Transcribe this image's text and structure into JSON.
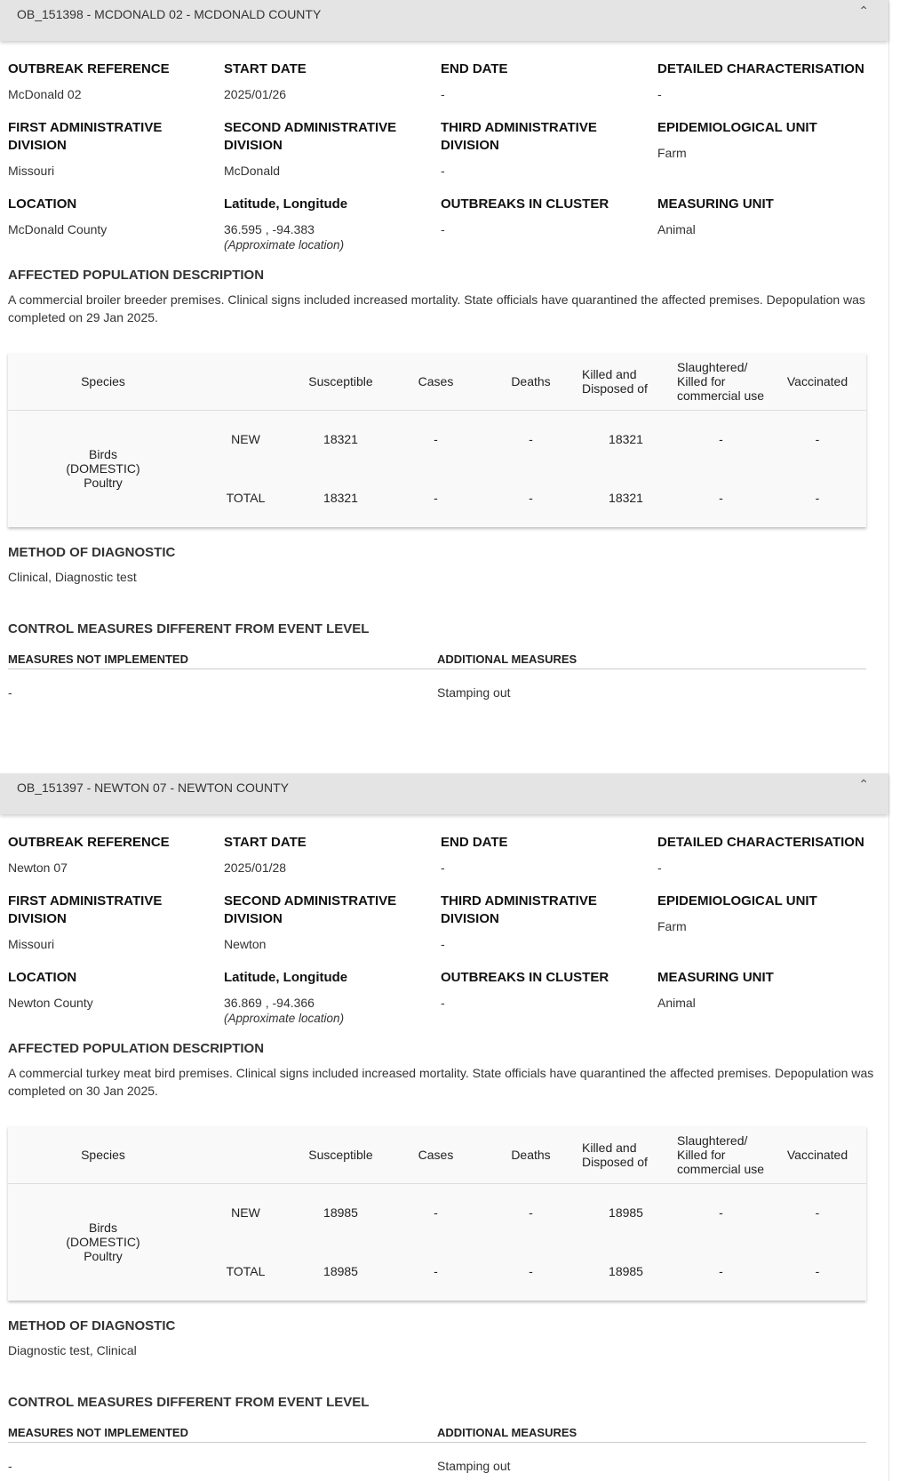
{
  "outbreaks": [
    {
      "title": "OB_151398 - MCDONALD 02 - MCDONALD COUNTY",
      "fields": {
        "outbreak_reference": {
          "label": "OUTBREAK REFERENCE",
          "value": "McDonald 02"
        },
        "start_date": {
          "label": "START DATE",
          "value": "2025/01/26"
        },
        "end_date": {
          "label": "END DATE",
          "value": "-"
        },
        "detailed_characterisation": {
          "label": "DETAILED CHARACTERISATION",
          "value": "-"
        },
        "first_admin": {
          "label": "FIRST ADMINISTRATIVE DIVISION",
          "value": "Missouri"
        },
        "second_admin": {
          "label": "SECOND ADMINISTRATIVE DIVISION",
          "value": "McDonald"
        },
        "third_admin": {
          "label": "THIRD ADMINISTRATIVE DIVISION",
          "value": "-"
        },
        "epi_unit": {
          "label": "EPIDEMIOLOGICAL UNIT",
          "value": "Farm"
        },
        "location": {
          "label": "LOCATION",
          "value": "McDonald County"
        },
        "latlon": {
          "label": "Latitude, Longitude",
          "value": "36.595 , -94.383",
          "note": "(Approximate location)"
        },
        "cluster": {
          "label": "OUTBREAKS IN CLUSTER",
          "value": "-"
        },
        "measuring_unit": {
          "label": "MEASURING UNIT",
          "value": "Animal"
        }
      },
      "affected": {
        "label": "AFFECTED POPULATION DESCRIPTION",
        "text": "A commercial broiler breeder premises. Clinical signs included increased mortality. State officials have quarantined the affected premises. Depopulation was completed on 29 Jan 2025."
      },
      "table": {
        "headers": [
          "Species",
          "",
          "Susceptible",
          "Cases",
          "Deaths",
          "Killed and Disposed of",
          "Slaughtered/ Killed for commercial use",
          "Vaccinated"
        ],
        "species": "Birds (DOMESTIC) Poultry",
        "rows": [
          [
            "NEW",
            "18321",
            "-",
            "-",
            "18321",
            "-",
            "-"
          ],
          [
            "TOTAL",
            "18321",
            "-",
            "-",
            "18321",
            "-",
            "-"
          ]
        ]
      },
      "diagnostic": {
        "label": "METHOD OF DIAGNOSTIC",
        "value": "Clinical, Diagnostic test"
      },
      "control": {
        "label": "CONTROL MEASURES DIFFERENT FROM EVENT LEVEL",
        "not_impl_label": "MEASURES NOT IMPLEMENTED",
        "add_label": "ADDITIONAL MEASURES",
        "not_impl": "-",
        "add": "Stamping out"
      }
    },
    {
      "title": "OB_151397 - NEWTON 07 - NEWTON COUNTY",
      "fields": {
        "outbreak_reference": {
          "label": "OUTBREAK REFERENCE",
          "value": "Newton 07"
        },
        "start_date": {
          "label": "START DATE",
          "value": "2025/01/28"
        },
        "end_date": {
          "label": "END DATE",
          "value": "-"
        },
        "detailed_characterisation": {
          "label": "DETAILED CHARACTERISATION",
          "value": "-"
        },
        "first_admin": {
          "label": "FIRST ADMINISTRATIVE DIVISION",
          "value": "Missouri"
        },
        "second_admin": {
          "label": "SECOND ADMINISTRATIVE DIVISION",
          "value": "Newton"
        },
        "third_admin": {
          "label": "THIRD ADMINISTRATIVE DIVISION",
          "value": "-"
        },
        "epi_unit": {
          "label": "EPIDEMIOLOGICAL UNIT",
          "value": "Farm"
        },
        "location": {
          "label": "LOCATION",
          "value": "Newton County"
        },
        "latlon": {
          "label": "Latitude, Longitude",
          "value": "36.869 , -94.366",
          "note": "(Approximate location)"
        },
        "cluster": {
          "label": "OUTBREAKS IN CLUSTER",
          "value": "-"
        },
        "measuring_unit": {
          "label": "MEASURING UNIT",
          "value": "Animal"
        }
      },
      "affected": {
        "label": "AFFECTED POPULATION DESCRIPTION",
        "text": "A commercial turkey meat bird premises. Clinical signs included increased mortality. State officials have quarantined the affected premises. Depopulation was completed on 30 Jan 2025."
      },
      "table": {
        "headers": [
          "Species",
          "",
          "Susceptible",
          "Cases",
          "Deaths",
          "Killed and Disposed of",
          "Slaughtered/ Killed for commercial use",
          "Vaccinated"
        ],
        "species": "Birds (DOMESTIC) Poultry",
        "rows": [
          [
            "NEW",
            "18985",
            "-",
            "-",
            "18985",
            "-",
            "-"
          ],
          [
            "TOTAL",
            "18985",
            "-",
            "-",
            "18985",
            "-",
            "-"
          ]
        ]
      },
      "diagnostic": {
        "label": "METHOD OF DIAGNOSTIC",
        "value": "Diagnostic test, Clinical"
      },
      "control": {
        "label": "CONTROL MEASURES DIFFERENT FROM EVENT LEVEL",
        "not_impl_label": "MEASURES NOT IMPLEMENTED",
        "add_label": "ADDITIONAL MEASURES",
        "not_impl": "-",
        "add": "Stamping out"
      }
    }
  ]
}
